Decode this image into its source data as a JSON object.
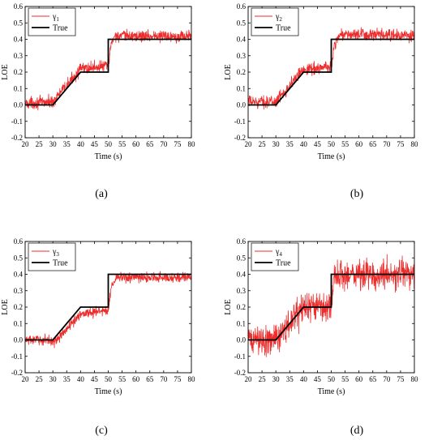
{
  "panel_labels": [
    "(a)",
    "(b)",
    "(c)",
    "(d)"
  ],
  "colors": {
    "estimate": "#ee2c2c",
    "true": "#000000",
    "axis": "#000000"
  },
  "chart_data": [
    {
      "type": "line",
      "xlabel": "Time (s)",
      "ylabel": "LOE",
      "xlim": [
        20,
        80
      ],
      "ylim": [
        -0.2,
        0.6
      ],
      "xticks": [
        "20",
        "25",
        "30",
        "35",
        "40",
        "45",
        "50",
        "55",
        "60",
        "65",
        "70",
        "75",
        "80"
      ],
      "yticks": [
        "-0.2",
        "-0.1",
        "0.0",
        "0.1",
        "0.2",
        "0.3",
        "0.4",
        "0.5",
        "0.6"
      ],
      "legend": "top-left",
      "grid": false,
      "series": [
        {
          "name": "γ",
          "subscript": "1",
          "color": "#ee2c2c",
          "noise": 0.018,
          "x": [
            20,
            30,
            40,
            50,
            51,
            52,
            80
          ],
          "y": [
            0.01,
            0.02,
            0.22,
            0.24,
            0.36,
            0.42,
            0.42
          ]
        },
        {
          "name": "True",
          "color": "#000000",
          "x": [
            20,
            30,
            40,
            50,
            50,
            80
          ],
          "y": [
            0.0,
            0.0,
            0.2,
            0.2,
            0.4,
            0.4
          ]
        }
      ]
    },
    {
      "type": "line",
      "xlabel": "Time (s)",
      "ylabel": "LOE",
      "xlim": [
        20,
        80
      ],
      "ylim": [
        -0.2,
        0.6
      ],
      "xticks": [
        "20",
        "25",
        "30",
        "35",
        "40",
        "45",
        "50",
        "55",
        "60",
        "65",
        "70",
        "75",
        "80"
      ],
      "yticks": [
        "-0.2",
        "-0.1",
        "0.0",
        "0.1",
        "0.2",
        "0.3",
        "0.4",
        "0.5",
        "0.6"
      ],
      "legend": "top-left",
      "grid": false,
      "series": [
        {
          "name": "γ",
          "subscript": "2",
          "color": "#ee2c2c",
          "noise": 0.018,
          "x": [
            20,
            30,
            40,
            50,
            51,
            53,
            80
          ],
          "y": [
            0.02,
            0.02,
            0.22,
            0.23,
            0.36,
            0.43,
            0.42
          ]
        },
        {
          "name": "True",
          "color": "#000000",
          "x": [
            20,
            30,
            40,
            50,
            50,
            80
          ],
          "y": [
            0.0,
            0.0,
            0.2,
            0.2,
            0.4,
            0.4
          ]
        }
      ]
    },
    {
      "type": "line",
      "xlabel": "Time (s)",
      "ylabel": "LOE",
      "xlim": [
        20,
        80
      ],
      "ylim": [
        -0.2,
        0.6
      ],
      "xticks": [
        "20",
        "25",
        "30",
        "35",
        "40",
        "45",
        "50",
        "55",
        "60",
        "65",
        "70",
        "75",
        "80"
      ],
      "yticks": [
        "-0.2",
        "-0.1",
        "0.0",
        "0.1",
        "0.2",
        "0.3",
        "0.4",
        "0.5",
        "0.6"
      ],
      "legend": "top-left",
      "grid": false,
      "series": [
        {
          "name": "γ",
          "subscript": "3",
          "color": "#ee2c2c",
          "noise": 0.015,
          "x": [
            20,
            28,
            31,
            40,
            50,
            51,
            53,
            80
          ],
          "y": [
            0.0,
            0.0,
            -0.01,
            0.16,
            0.18,
            0.32,
            0.38,
            0.38
          ]
        },
        {
          "name": "True",
          "color": "#000000",
          "x": [
            20,
            30,
            40,
            50,
            50,
            80
          ],
          "y": [
            0.0,
            0.0,
            0.2,
            0.2,
            0.4,
            0.4
          ]
        }
      ]
    },
    {
      "type": "line",
      "xlabel": "Time (s)",
      "ylabel": "LOE",
      "xlim": [
        20,
        80
      ],
      "ylim": [
        -0.2,
        0.6
      ],
      "xticks": [
        "20",
        "25",
        "30",
        "35",
        "40",
        "45",
        "50",
        "55",
        "60",
        "65",
        "70",
        "75",
        "80"
      ],
      "yticks": [
        "-0.2",
        "-0.1",
        "0.0",
        "0.1",
        "0.2",
        "0.3",
        "0.4",
        "0.5",
        "0.6"
      ],
      "legend": "top-left",
      "grid": false,
      "series": [
        {
          "name": "γ",
          "subscript": "4",
          "color": "#ee2c2c",
          "noise": 0.045,
          "x": [
            20,
            30,
            40,
            50,
            51,
            53,
            80
          ],
          "y": [
            0.0,
            0.0,
            0.2,
            0.2,
            0.35,
            0.4,
            0.4
          ]
        },
        {
          "name": "True",
          "color": "#000000",
          "x": [
            20,
            30,
            40,
            50,
            50,
            80
          ],
          "y": [
            0.0,
            0.0,
            0.2,
            0.2,
            0.4,
            0.4
          ]
        }
      ]
    }
  ]
}
